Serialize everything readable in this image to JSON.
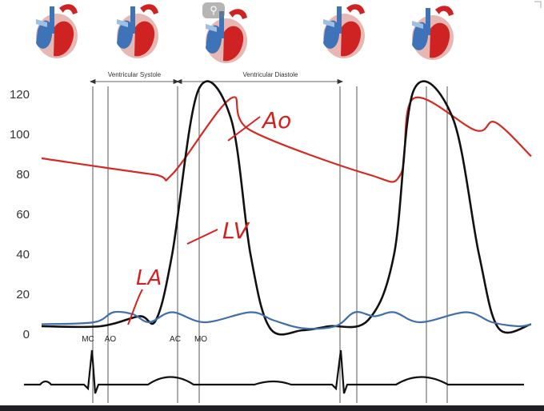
{
  "colors": {
    "aortic": "#d42a22",
    "ventricle": "#111111",
    "atrium": "#3f6ea8",
    "ecg": "#111111"
  },
  "icons": [
    "heart-diagram-icon",
    "heart-diagram-icon",
    "heart-diagram-icon",
    "heart-diagram-icon",
    "heart-diagram-icon"
  ],
  "zoom_icon": "zoom-icon",
  "phases": [
    "Ventricular Systole",
    "Ventricular Diastole"
  ],
  "events": [
    "MC",
    "AO",
    "AC",
    "MO"
  ],
  "annotations": {
    "ao": "Ao",
    "lv": "LV",
    "la": "LA"
  },
  "chart_data": {
    "type": "line",
    "ylim": [
      0,
      125
    ],
    "y_ticks": [
      "0",
      "20",
      "40",
      "60",
      "80",
      "100",
      "120"
    ],
    "grid": false,
    "legend": "none",
    "series": [
      {
        "x": [
          0,
          0.34,
          0.4,
          0.58,
          0.64,
          1.0,
          1.1,
          1.14,
          1.33,
          1.39,
          1.5
        ],
        "values": [
          88,
          80,
          80,
          118,
          102,
          80,
          80,
          118,
          102,
          106,
          89
        ]
      },
      {
        "x": [
          0,
          0.18,
          0.3,
          0.35,
          0.4,
          0.48,
          0.58,
          0.64,
          0.7,
          0.8,
          0.88,
          1.0,
          1.08,
          1.14,
          1.26,
          1.34,
          1.4,
          1.5
        ],
        "values": [
          4,
          4,
          9,
          7,
          40,
          122,
          108,
          40,
          3,
          2,
          4,
          7,
          40,
          122,
          108,
          40,
          3,
          5
        ]
      },
      {
        "x": [
          0,
          0.16,
          0.22,
          0.28,
          0.33,
          0.4,
          0.5,
          0.64,
          0.71,
          0.8,
          0.9,
          0.96,
          1.02,
          1.08,
          1.16,
          1.3,
          1.38,
          1.46,
          1.5
        ],
        "values": [
          5,
          6,
          11,
          10,
          6,
          11,
          6,
          11,
          7,
          3,
          4,
          11,
          9,
          11,
          6,
          11,
          6,
          4,
          5
        ]
      }
    ]
  }
}
